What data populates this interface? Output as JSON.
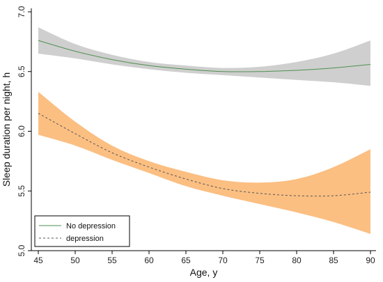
{
  "chart_data": {
    "type": "line",
    "xlabel": "Age, y",
    "ylabel": "Sleep duration per night, h",
    "xlim": [
      45,
      90
    ],
    "ylim": [
      5.0,
      7.0
    ],
    "x_ticks": [
      45,
      50,
      55,
      60,
      65,
      70,
      75,
      80,
      85,
      90
    ],
    "y_ticks": [
      "5.0",
      "5.5",
      "6.0",
      "6.5",
      "7.0"
    ],
    "legend_position": "bottom-left",
    "grid": false,
    "x": [
      45,
      50,
      55,
      60,
      65,
      70,
      75,
      80,
      85,
      90
    ],
    "series": [
      {
        "name": "No depression",
        "line_style": "solid",
        "line_color": "#4f8f4f",
        "band_color": "#cfcfcf",
        "values": [
          6.76,
          6.67,
          6.6,
          6.55,
          6.52,
          6.5,
          6.5,
          6.51,
          6.53,
          6.56
        ],
        "lower": [
          6.65,
          6.61,
          6.56,
          6.52,
          6.49,
          6.47,
          6.45,
          6.43,
          6.41,
          6.38
        ],
        "upper": [
          6.87,
          6.73,
          6.64,
          6.58,
          6.55,
          6.53,
          6.54,
          6.58,
          6.65,
          6.76
        ]
      },
      {
        "name": "depression",
        "line_style": "dashed",
        "line_color": "#555555",
        "band_color": "#fbbf82",
        "values": [
          6.15,
          5.98,
          5.82,
          5.7,
          5.6,
          5.52,
          5.48,
          5.46,
          5.46,
          5.49
        ],
        "lower": [
          5.97,
          5.88,
          5.76,
          5.65,
          5.54,
          5.46,
          5.39,
          5.32,
          5.24,
          5.14
        ],
        "upper": [
          6.33,
          6.08,
          5.88,
          5.75,
          5.66,
          5.59,
          5.57,
          5.6,
          5.7,
          5.85
        ]
      }
    ]
  }
}
